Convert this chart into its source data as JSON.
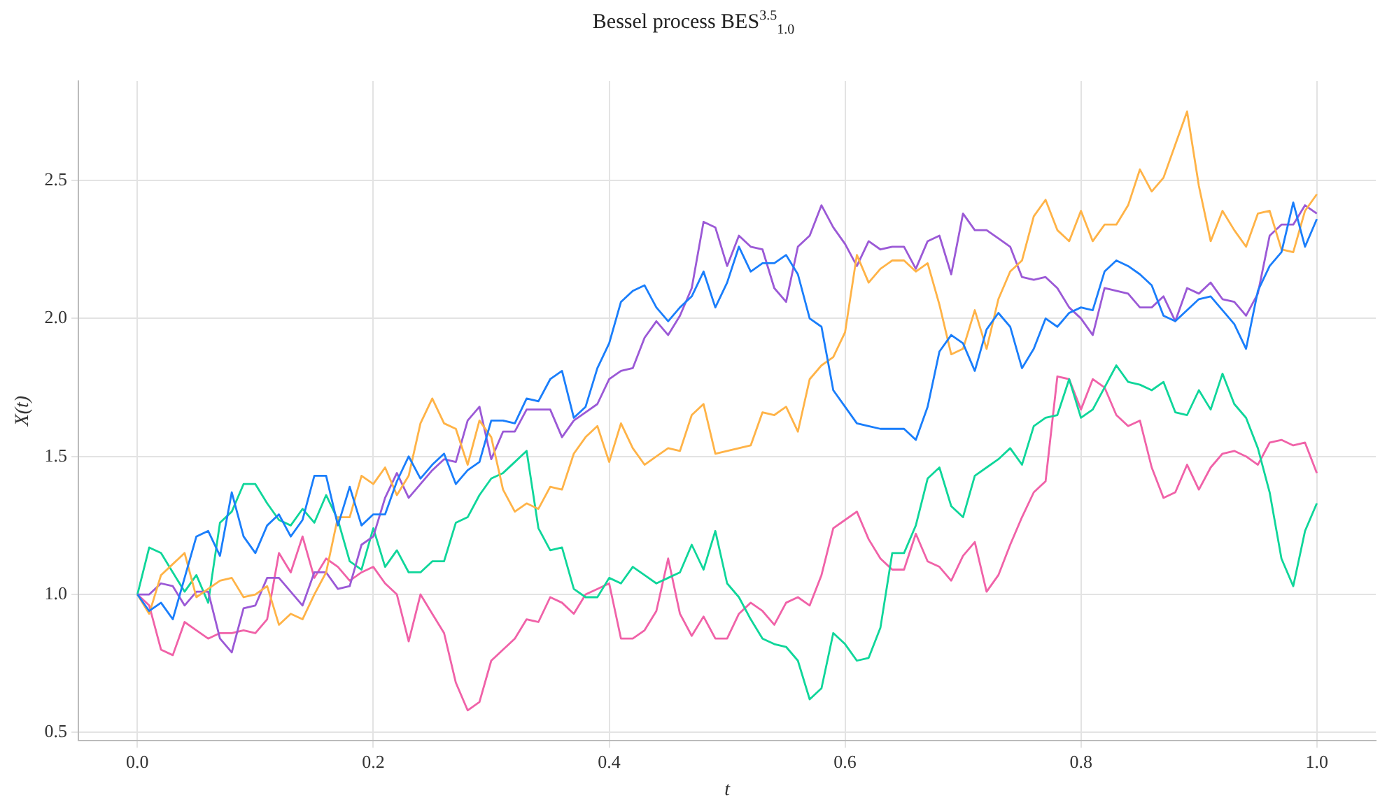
{
  "chart_data": {
    "type": "line",
    "title": "Bessel process BES$^{3.5}$$_{1.0}$",
    "xlabel": "t",
    "ylabel": "X(t)",
    "x": [
      0,
      0.01,
      0.02,
      0.03,
      0.04,
      0.05,
      0.06,
      0.07,
      0.08,
      0.09,
      0.1,
      0.11,
      0.12,
      0.13,
      0.14,
      0.15,
      0.16,
      0.17,
      0.18,
      0.19,
      0.2,
      0.21,
      0.22,
      0.23,
      0.24,
      0.25,
      0.26,
      0.27,
      0.28,
      0.29,
      0.3,
      0.31,
      0.32,
      0.33,
      0.34,
      0.35,
      0.36,
      0.37,
      0.38,
      0.39,
      0.4,
      0.41,
      0.42,
      0.43,
      0.44,
      0.45,
      0.46,
      0.47,
      0.48,
      0.49,
      0.5,
      0.51,
      0.52,
      0.53,
      0.54,
      0.55,
      0.56,
      0.57,
      0.58,
      0.59,
      0.6,
      0.61,
      0.62,
      0.63,
      0.64,
      0.65,
      0.66,
      0.67,
      0.68,
      0.69,
      0.7,
      0.71,
      0.72,
      0.73,
      0.74,
      0.75,
      0.76,
      0.77,
      0.78,
      0.79,
      0.8,
      0.81,
      0.82,
      0.83,
      0.84,
      0.85,
      0.86,
      0.87,
      0.88,
      0.89,
      0.9,
      0.91,
      0.92,
      0.93,
      0.94,
      0.95,
      0.96,
      0.97,
      0.98,
      0.99,
      1
    ],
    "series": [
      {
        "color": "#1a7efb",
        "values": [
          1.0,
          0.94,
          0.97,
          0.91,
          1.06,
          1.21,
          1.23,
          1.14,
          1.37,
          1.21,
          1.15,
          1.25,
          1.29,
          1.21,
          1.27,
          1.43,
          1.43,
          1.25,
          1.39,
          1.25,
          1.29,
          1.29,
          1.41,
          1.5,
          1.42,
          1.47,
          1.51,
          1.4,
          1.45,
          1.48,
          1.63,
          1.63,
          1.62,
          1.71,
          1.7,
          1.78,
          1.81,
          1.64,
          1.68,
          1.82,
          1.91,
          2.06,
          2.1,
          2.12,
          2.04,
          1.99,
          2.04,
          2.08,
          2.17,
          2.04,
          2.13,
          2.26,
          2.17,
          2.2,
          2.2,
          2.23,
          2.16,
          2.0,
          1.97,
          1.74,
          1.68,
          1.62,
          1.61,
          1.6,
          1.6,
          1.6,
          1.56,
          1.68,
          1.88,
          1.94,
          1.91,
          1.81,
          1.96,
          2.02,
          1.97,
          1.82,
          1.89,
          2.0,
          1.97,
          2.02,
          2.04,
          2.03,
          2.17,
          2.21,
          2.19,
          2.16,
          2.12,
          2.01,
          1.99,
          2.03,
          2.07,
          2.08,
          2.03,
          1.98,
          1.89,
          2.1,
          2.19,
          2.24,
          2.42,
          2.26,
          2.36
        ]
      },
      {
        "color": "#ffb347",
        "values": [
          1.0,
          0.93,
          1.07,
          1.11,
          1.15,
          0.99,
          1.02,
          1.05,
          1.06,
          0.99,
          1.0,
          1.03,
          0.89,
          0.93,
          0.91,
          1.0,
          1.08,
          1.28,
          1.28,
          1.43,
          1.4,
          1.46,
          1.36,
          1.43,
          1.62,
          1.71,
          1.62,
          1.6,
          1.47,
          1.63,
          1.57,
          1.38,
          1.3,
          1.33,
          1.31,
          1.39,
          1.38,
          1.51,
          1.57,
          1.61,
          1.48,
          1.62,
          1.53,
          1.47,
          1.5,
          1.53,
          1.52,
          1.65,
          1.69,
          1.51,
          1.52,
          1.53,
          1.54,
          1.66,
          1.65,
          1.68,
          1.59,
          1.78,
          1.83,
          1.86,
          1.95,
          2.23,
          2.13,
          2.18,
          2.21,
          2.21,
          2.17,
          2.2,
          2.05,
          1.87,
          1.89,
          2.03,
          1.89,
          2.07,
          2.17,
          2.21,
          2.37,
          2.43,
          2.32,
          2.28,
          2.39,
          2.28,
          2.34,
          2.34,
          2.41,
          2.54,
          2.46,
          2.51,
          2.63,
          2.75,
          2.48,
          2.28,
          2.39,
          2.32,
          2.26,
          2.38,
          2.39,
          2.25,
          2.24,
          2.39,
          2.45
        ]
      },
      {
        "color": "#9b59d6",
        "values": [
          1.0,
          1.0,
          1.04,
          1.03,
          0.96,
          1.01,
          1.01,
          0.84,
          0.79,
          0.95,
          0.96,
          1.06,
          1.06,
          1.01,
          0.96,
          1.08,
          1.08,
          1.02,
          1.03,
          1.18,
          1.21,
          1.35,
          1.44,
          1.35,
          1.4,
          1.45,
          1.49,
          1.48,
          1.63,
          1.68,
          1.49,
          1.59,
          1.59,
          1.67,
          1.67,
          1.67,
          1.57,
          1.63,
          1.66,
          1.69,
          1.78,
          1.81,
          1.82,
          1.93,
          1.99,
          1.94,
          2.01,
          2.11,
          2.35,
          2.33,
          2.19,
          2.3,
          2.26,
          2.25,
          2.11,
          2.06,
          2.26,
          2.3,
          2.41,
          2.33,
          2.27,
          2.19,
          2.28,
          2.25,
          2.26,
          2.26,
          2.18,
          2.28,
          2.3,
          2.16,
          2.38,
          2.32,
          2.32,
          2.29,
          2.26,
          2.15,
          2.14,
          2.15,
          2.11,
          2.04,
          2.0,
          1.94,
          2.11,
          2.1,
          2.09,
          2.04,
          2.04,
          2.08,
          1.99,
          2.11,
          2.09,
          2.13,
          2.07,
          2.06,
          2.01,
          2.09,
          2.3,
          2.34,
          2.34,
          2.41,
          2.38
        ]
      },
      {
        "color": "#0fd69a",
        "values": [
          1.0,
          1.17,
          1.15,
          1.08,
          1.01,
          1.07,
          0.97,
          1.26,
          1.3,
          1.4,
          1.4,
          1.33,
          1.27,
          1.25,
          1.31,
          1.26,
          1.36,
          1.27,
          1.12,
          1.09,
          1.24,
          1.1,
          1.16,
          1.08,
          1.08,
          1.12,
          1.12,
          1.26,
          1.28,
          1.36,
          1.42,
          1.44,
          1.48,
          1.52,
          1.24,
          1.16,
          1.17,
          1.02,
          0.99,
          0.99,
          1.06,
          1.04,
          1.1,
          1.07,
          1.04,
          1.06,
          1.08,
          1.18,
          1.09,
          1.23,
          1.04,
          0.99,
          0.91,
          0.84,
          0.82,
          0.81,
          0.76,
          0.62,
          0.66,
          0.86,
          0.82,
          0.76,
          0.77,
          0.88,
          1.15,
          1.15,
          1.25,
          1.42,
          1.46,
          1.32,
          1.28,
          1.43,
          1.46,
          1.49,
          1.53,
          1.47,
          1.61,
          1.64,
          1.65,
          1.78,
          1.64,
          1.67,
          1.75,
          1.83,
          1.77,
          1.76,
          1.74,
          1.77,
          1.66,
          1.65,
          1.74,
          1.67,
          1.8,
          1.69,
          1.64,
          1.53,
          1.37,
          1.13,
          1.03,
          1.23,
          1.33
        ]
      },
      {
        "color": "#f062a8",
        "values": [
          1.0,
          0.96,
          0.8,
          0.78,
          0.9,
          0.87,
          0.84,
          0.86,
          0.86,
          0.87,
          0.86,
          0.91,
          1.15,
          1.08,
          1.21,
          1.06,
          1.13,
          1.1,
          1.05,
          1.08,
          1.1,
          1.04,
          1.0,
          0.83,
          1.0,
          0.93,
          0.86,
          0.68,
          0.58,
          0.61,
          0.76,
          0.8,
          0.84,
          0.91,
          0.9,
          0.99,
          0.97,
          0.93,
          1.0,
          1.02,
          1.04,
          0.84,
          0.84,
          0.87,
          0.94,
          1.13,
          0.93,
          0.85,
          0.92,
          0.84,
          0.84,
          0.93,
          0.97,
          0.94,
          0.89,
          0.97,
          0.99,
          0.96,
          1.07,
          1.24,
          1.27,
          1.3,
          1.2,
          1.13,
          1.09,
          1.09,
          1.22,
          1.12,
          1.1,
          1.05,
          1.14,
          1.19,
          1.01,
          1.07,
          1.18,
          1.28,
          1.37,
          1.41,
          1.79,
          1.78,
          1.67,
          1.78,
          1.75,
          1.65,
          1.61,
          1.63,
          1.46,
          1.35,
          1.37,
          1.47,
          1.38,
          1.46,
          1.51,
          1.52,
          1.5,
          1.47,
          1.55,
          1.56,
          1.54,
          1.55,
          1.44
        ]
      }
    ],
    "xlim": [
      -0.05,
      1.05
    ],
    "xticks": [
      {
        "value": 0,
        "label": "0.0"
      },
      {
        "value": 0.2,
        "label": "0.2"
      },
      {
        "value": 0.4,
        "label": "0.4"
      },
      {
        "value": 0.6,
        "label": "0.6"
      },
      {
        "value": 0.8,
        "label": "0.8"
      },
      {
        "value": 1,
        "label": "1.0"
      }
    ],
    "ylim": [
      0.47,
      2.86
    ],
    "yticks": [
      {
        "value": 0.5,
        "label": "0.5"
      },
      {
        "value": 1,
        "label": "1.0"
      },
      {
        "value": 1.5,
        "label": "1.5"
      },
      {
        "value": 2,
        "label": "2.0"
      },
      {
        "value": 2.5,
        "label": "2.5"
      }
    ],
    "grid": true,
    "legend": false,
    "marker": "none",
    "line_style": "solid"
  }
}
